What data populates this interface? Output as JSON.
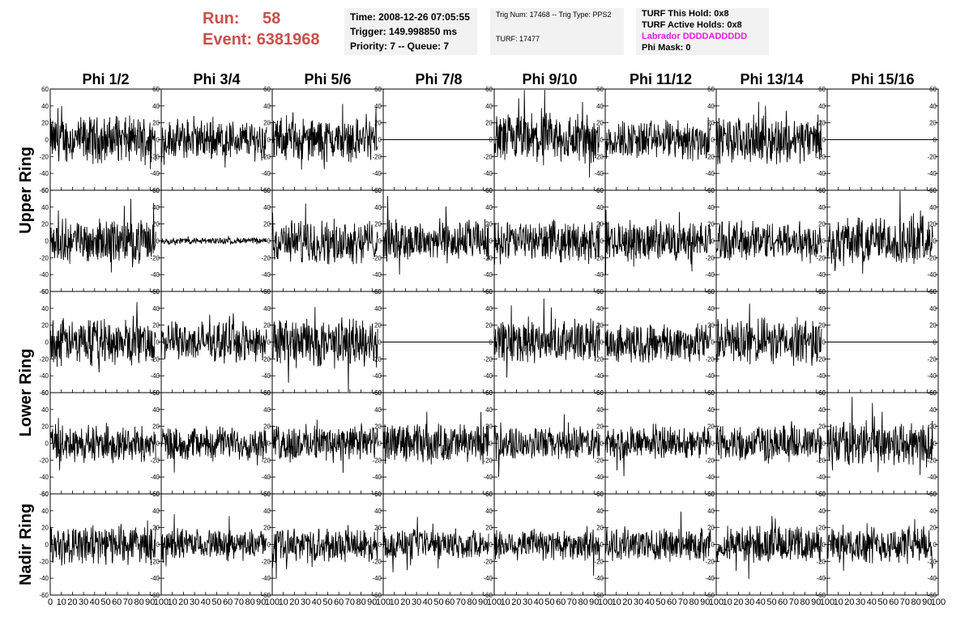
{
  "header": {
    "run_label": "Run:",
    "run_value": "58",
    "event_label": "Event:",
    "event_value": "6381968",
    "box1": [
      "Time: 2008-12-26 07:05:55",
      "Trigger: 149.998850 ms",
      "Priority: 7 -- Queue: 7"
    ],
    "box2": [
      "Trig Num: 17468 -- Trig Type: PPS2",
      "",
      "TURF: 17477"
    ],
    "box3": [
      "TURF This Hold: 0x8",
      "TURF Active Holds: 0x8",
      "Labrador DDDDADDDDD",
      "Phi Mask: 0"
    ],
    "box3_highlight_color": "#e020e0"
  },
  "chart_data": {
    "type": "line",
    "grid": "8 columns x 5 rows of waveform panels",
    "columns": [
      "Phi 1/2",
      "Phi 3/4",
      "Phi 5/6",
      "Phi 7/8",
      "Phi 9/10",
      "Phi 11/12",
      "Phi 13/14",
      "Phi 15/16"
    ],
    "row_groups": [
      {
        "label": "Upper Ring",
        "rows": [
          0,
          1
        ]
      },
      {
        "label": "Lower Ring",
        "rows": [
          2,
          3
        ]
      },
      {
        "label": "Nadir Ring",
        "rows": [
          4
        ]
      }
    ],
    "ylim": [
      -60,
      60
    ],
    "yticks": [
      -60,
      -40,
      -20,
      0,
      20,
      40,
      60
    ],
    "xlim": [
      0,
      100
    ],
    "xticks": [
      0,
      10,
      20,
      30,
      40,
      50,
      60,
      70,
      80,
      90,
      100
    ],
    "xtick_labels": [
      "0",
      "10",
      "20",
      "30",
      "40",
      "50",
      "60",
      "70",
      "80",
      "90",
      "100"
    ],
    "waveform_samples": 260,
    "waveform_xrange": [
      0,
      95
    ],
    "flat_panels": [
      [
        0,
        3
      ],
      [
        0,
        7
      ],
      [
        2,
        3
      ],
      [
        2,
        7
      ]
    ],
    "panel_amplitude": [
      [
        14,
        12,
        13,
        0,
        16,
        12,
        14,
        0
      ],
      [
        13,
        2,
        13,
        13,
        12,
        12,
        12,
        15
      ],
      [
        14,
        12,
        15,
        0,
        13,
        12,
        14,
        0
      ],
      [
        11,
        10,
        11,
        12,
        10,
        10,
        11,
        14
      ],
      [
        12,
        9,
        10,
        9,
        10,
        10,
        11,
        11
      ]
    ],
    "line_color": "#000000"
  }
}
